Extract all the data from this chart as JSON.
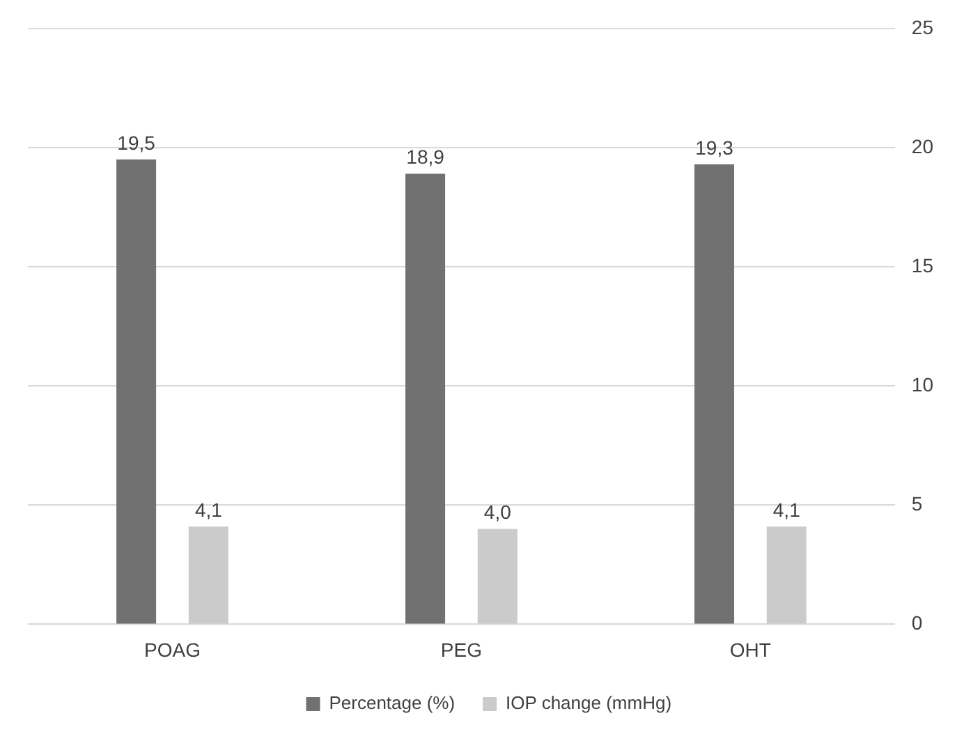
{
  "chart_data": {
    "type": "bar",
    "categories": [
      "POAG",
      "PEG",
      "OHT"
    ],
    "series": [
      {
        "name": "Percentage (%)",
        "color": "#717171",
        "values": [
          19.5,
          18.9,
          19.3
        ],
        "value_labels": [
          "19,5",
          "18,9",
          "19,3"
        ]
      },
      {
        "name": "IOP change (mmHg)",
        "color": "#cbcbcb",
        "values": [
          4.1,
          4.0,
          4.1
        ],
        "value_labels": [
          "4,1",
          "4,0",
          "4,1"
        ]
      }
    ],
    "ylim": [
      0,
      25
    ],
    "yticks": [
      0,
      5,
      10,
      15,
      20,
      25
    ],
    "grid": "y",
    "legend": "bottom"
  }
}
